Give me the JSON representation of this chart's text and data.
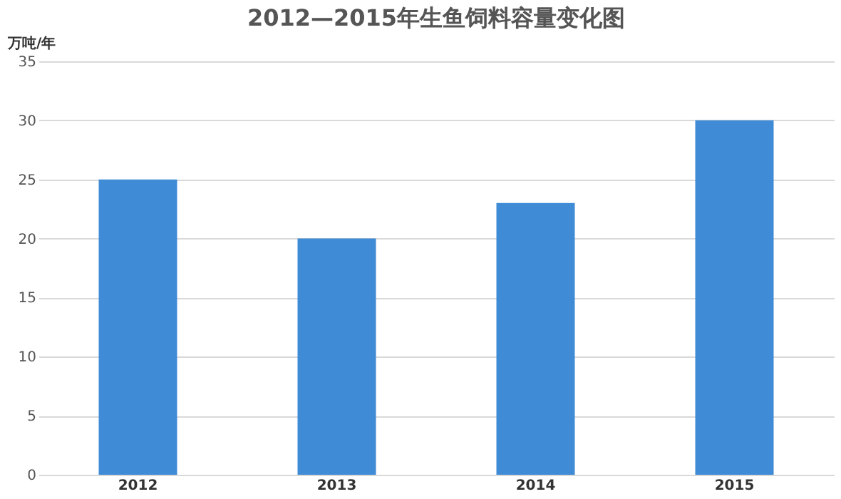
{
  "chart_data": {
    "type": "bar",
    "title": "2012—2015年生鱼饲料容量变化图",
    "ylabel": "万吨/年",
    "categories": [
      "2012",
      "2013",
      "2014",
      "2015"
    ],
    "values": [
      25,
      20,
      23,
      30
    ],
    "color": "#3f8bd6",
    "ylim": [
      0,
      35
    ],
    "yticks": [
      0,
      5,
      10,
      15,
      20,
      25,
      30,
      35
    ],
    "grid": "y"
  }
}
